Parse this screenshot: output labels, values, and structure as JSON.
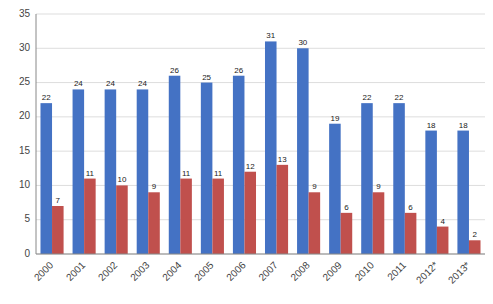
{
  "chart_data": {
    "type": "bar",
    "categories": [
      "2000",
      "2001",
      "2002",
      "2003",
      "2004",
      "2005",
      "2006",
      "2007",
      "2008",
      "2009",
      "2010",
      "2011",
      "2012*",
      "2013*"
    ],
    "series": [
      {
        "color": "#4472C4",
        "values": [
          22,
          24,
          24,
          24,
          26,
          25,
          26,
          31,
          30,
          19,
          22,
          22,
          18,
          18
        ]
      },
      {
        "color": "#C0504D",
        "values": [
          7,
          11,
          10,
          9,
          11,
          11,
          12,
          13,
          9,
          6,
          9,
          6,
          4,
          2
        ]
      }
    ],
    "ylim": [
      0,
      35
    ],
    "yticks": [
      0,
      5,
      10,
      15,
      20,
      25,
      30,
      35
    ],
    "grid": true,
    "data_labels": true
  }
}
